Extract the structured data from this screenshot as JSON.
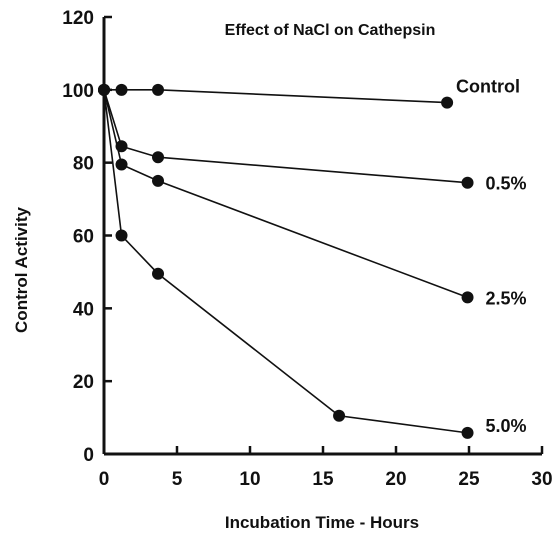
{
  "chart_data": {
    "type": "line",
    "title": "Effect of NaCl on Cathepsin",
    "xlabel": "Incubation Time - Hours",
    "ylabel": "Control Activity",
    "xlim": [
      0,
      30
    ],
    "ylim": [
      0,
      120
    ],
    "x_ticks": [
      0,
      5,
      10,
      15,
      20,
      25,
      30
    ],
    "y_ticks": [
      0,
      20,
      40,
      60,
      80,
      100,
      120
    ],
    "x_tick_labels": [
      "0",
      "5",
      "10",
      "15",
      "20",
      "25",
      "30"
    ],
    "y_tick_labels": [
      "0",
      "20",
      "40",
      "60",
      "80",
      "100",
      "120"
    ],
    "grid": false,
    "legend": "labels at line ends",
    "marker_color": "#111111",
    "series": [
      {
        "name": "Control",
        "x": [
          0,
          1.2,
          3.7,
          23.5
        ],
        "y": [
          100,
          100,
          100,
          96.5
        ]
      },
      {
        "name": "0.5%",
        "x": [
          0,
          1.2,
          3.7,
          24.9
        ],
        "y": [
          100,
          84.5,
          81.5,
          74.5
        ]
      },
      {
        "name": "2.5%",
        "x": [
          0,
          1.2,
          3.7,
          24.9
        ],
        "y": [
          100,
          79.5,
          75,
          43
        ]
      },
      {
        "name": "5.0%",
        "x": [
          0,
          1.2,
          3.7,
          16.1,
          24.9
        ],
        "y": [
          100,
          60,
          49.5,
          10.5,
          5.8
        ]
      }
    ]
  }
}
